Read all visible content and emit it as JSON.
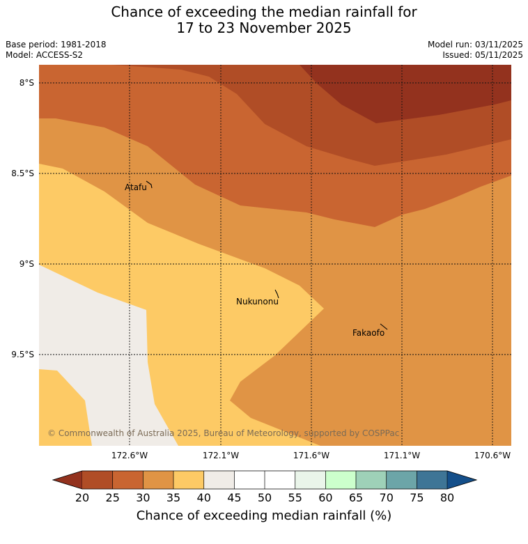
{
  "title": {
    "line1": "Chance of exceeding the median rainfall for",
    "line2": "17 to 23 November 2025"
  },
  "meta": {
    "base_period": "Base period: 1981-2018",
    "model": "Model: ACCESS-S2",
    "model_run": "Model run: 03/11/2025",
    "issued": "Issued: 05/11/2025"
  },
  "map": {
    "lat_labels": [
      "8°S",
      "8.5°S",
      "9°S",
      "9.5°S"
    ],
    "lon_labels": [
      "172.6°W",
      "172.1°W",
      "171.6°W",
      "171.1°W",
      "170.6°W"
    ],
    "places": [
      "Atafu",
      "Nukunonu",
      "Fakaofo"
    ],
    "copyright": "© Commonwealth of Australia 2025, Bureau of Meteorology, supported by COSPPac",
    "zones": [
      {
        "name": "35-40",
        "color": "#fdca65"
      },
      {
        "name": "30-35",
        "color": "#e09445"
      },
      {
        "name": "25-30",
        "color": "#c96531"
      },
      {
        "name": "20-25",
        "color": "#b04d26"
      },
      {
        "name": "<20",
        "color": "#93321e"
      },
      {
        "name": "40-45",
        "color": "#f0ece7"
      }
    ]
  },
  "colorbar": {
    "ticks": [
      "20",
      "25",
      "30",
      "35",
      "40",
      "45",
      "50",
      "55",
      "60",
      "65",
      "70",
      "75",
      "80"
    ],
    "colors": [
      "#b04d26",
      "#c96531",
      "#e09445",
      "#fdca65",
      "#f0ece7",
      "#ffffff",
      "#ffffff",
      "#eaf5ea",
      "#ccffcc",
      "#9ed1b8",
      "#6ca5a8",
      "#3e7596"
    ],
    "low_color": "#93321e",
    "high_color": "#144f8a",
    "label": "Chance of exceeding median rainfall (%)"
  }
}
